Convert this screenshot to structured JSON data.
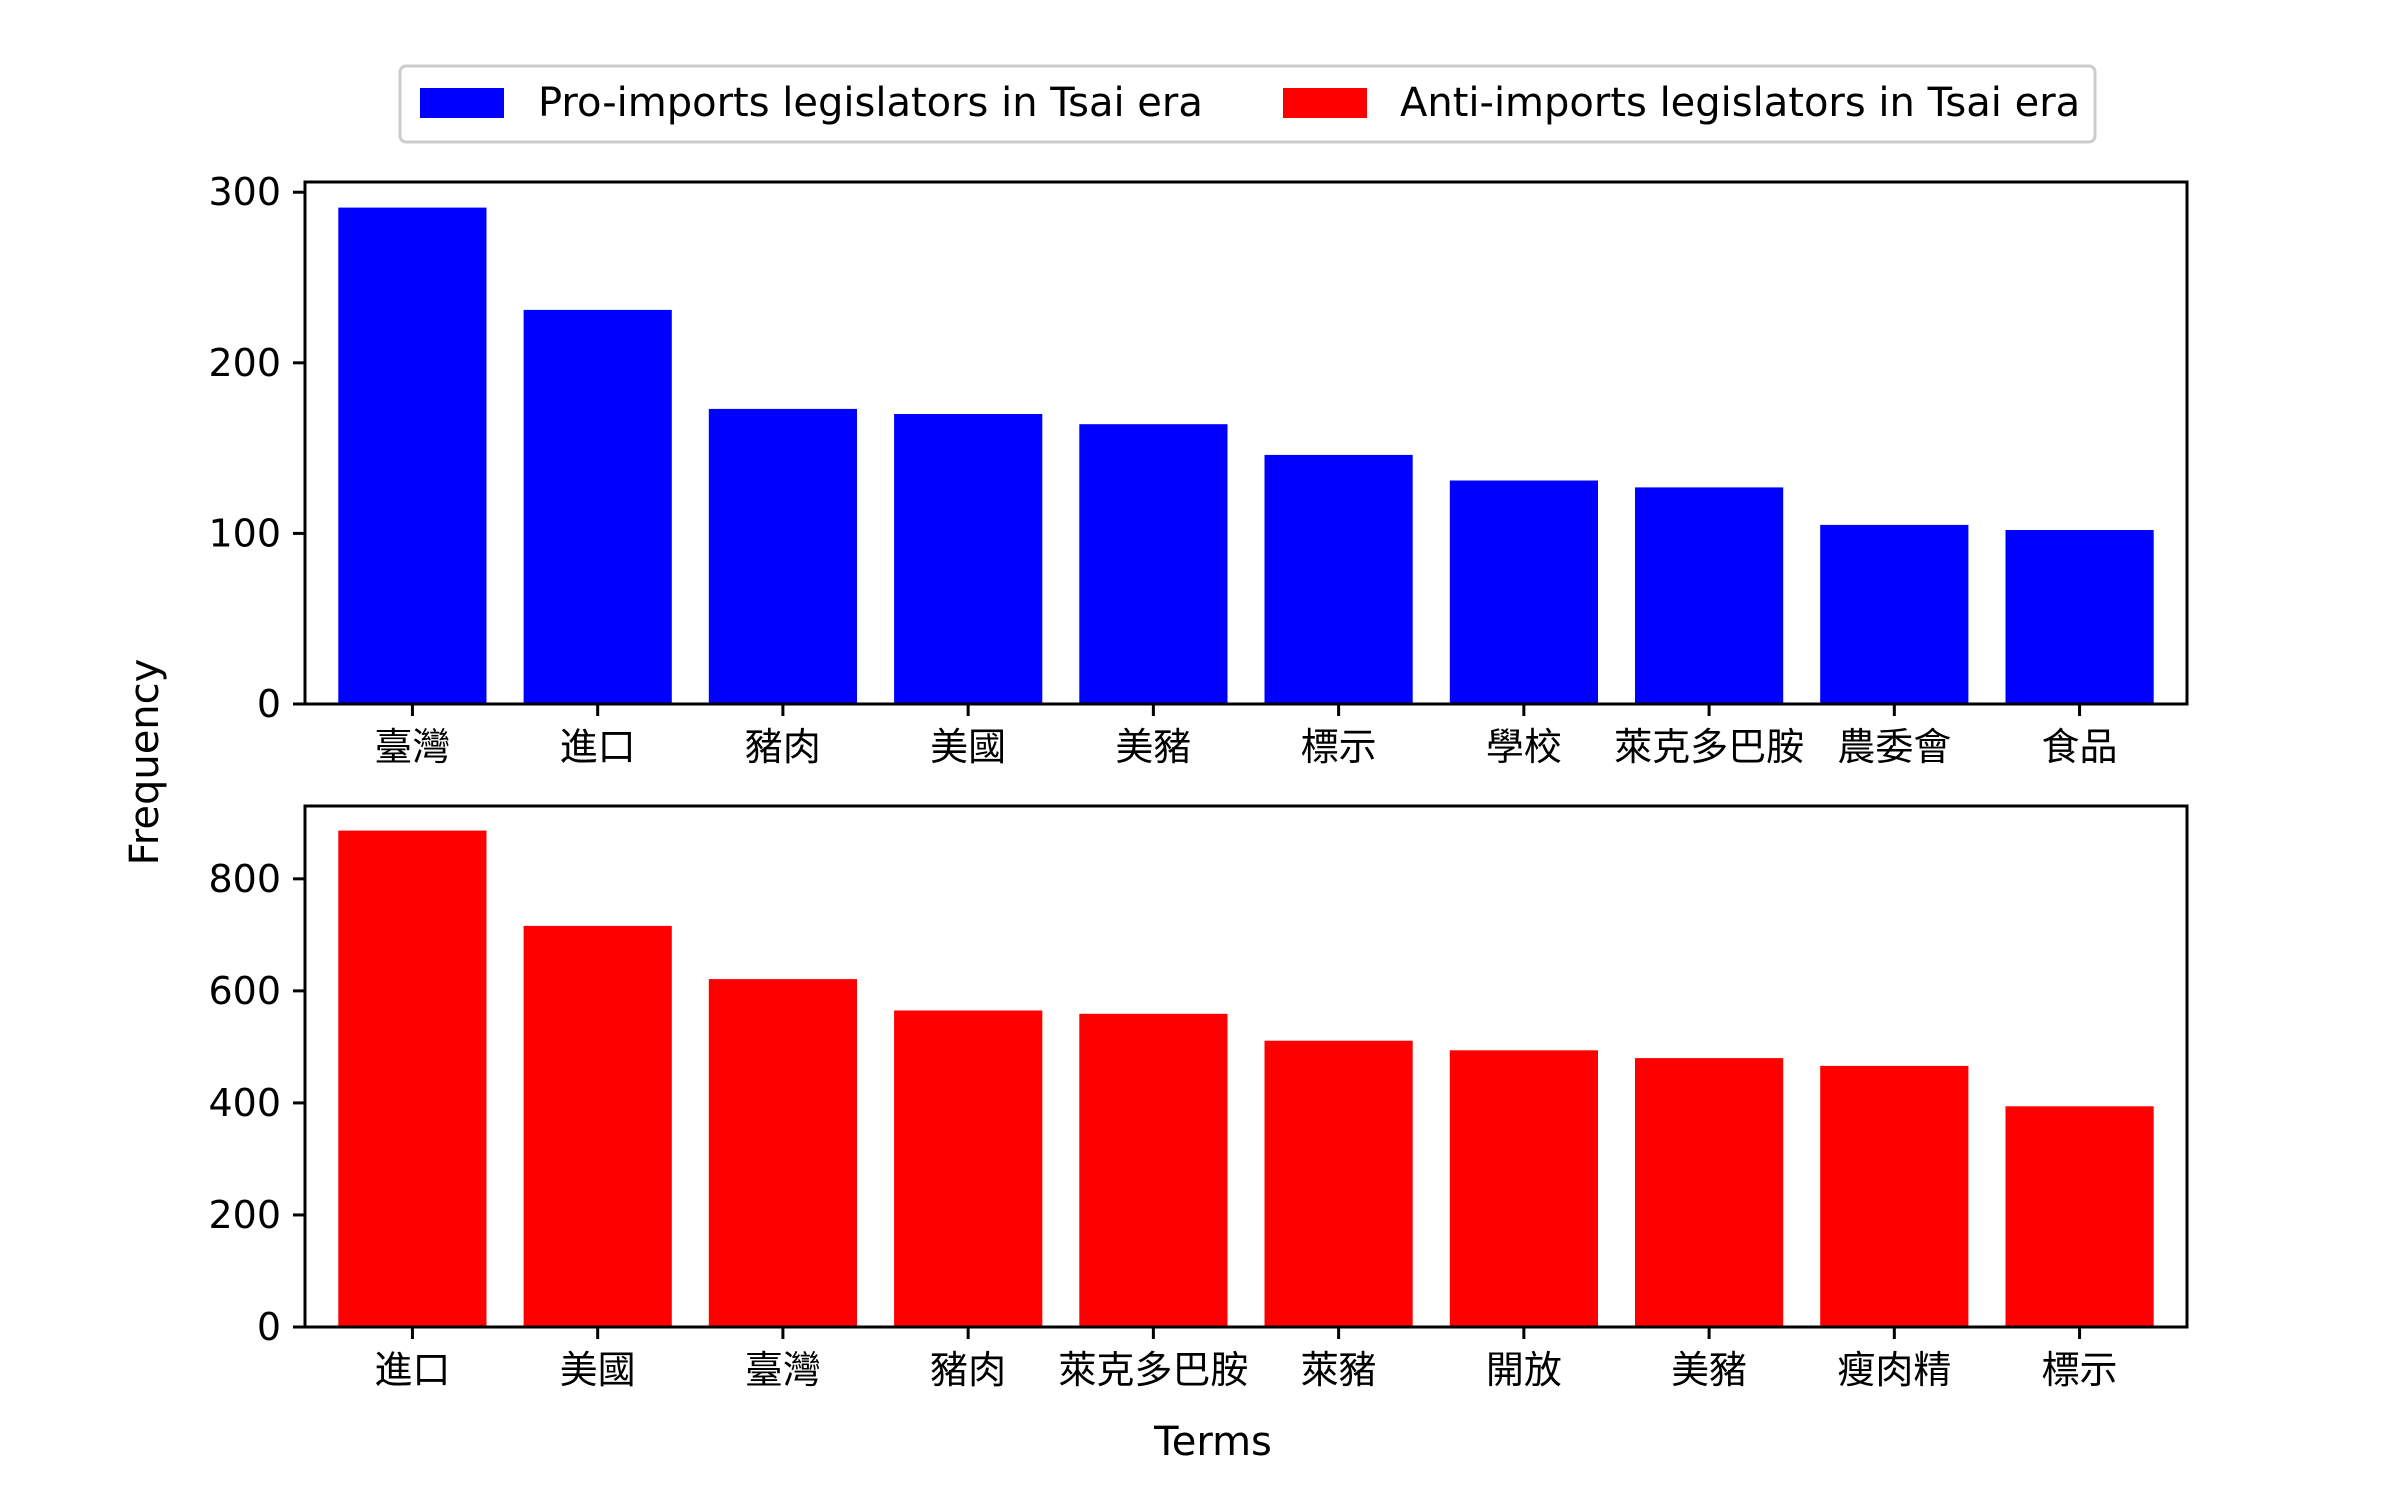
{
  "legend": {
    "items": [
      {
        "label": "Pro-imports legislators in Tsai era",
        "color": "#0000ff"
      },
      {
        "label": "Anti-imports legislators in Tsai era",
        "color": "#ff0000"
      }
    ]
  },
  "axes": {
    "ylabel": "Frequency",
    "xlabel": "Terms"
  },
  "chart_data": [
    {
      "type": "bar",
      "series_name": "Pro-imports legislators in Tsai era",
      "color": "#0000ff",
      "categories": [
        "臺灣",
        "進口",
        "豬肉",
        "美國",
        "美豬",
        "標示",
        "學校",
        "萊克多巴胺",
        "農委會",
        "食品"
      ],
      "values": [
        291,
        231,
        173,
        170,
        164,
        146,
        131,
        127,
        105,
        102
      ],
      "ylim": [
        0,
        306
      ],
      "yticks": [
        0,
        100,
        200,
        300
      ],
      "ylabel": "Frequency",
      "xlabel": "",
      "grid": false
    },
    {
      "type": "bar",
      "series_name": "Anti-imports legislators in Tsai era",
      "color": "#ff0000",
      "categories": [
        "進口",
        "美國",
        "臺灣",
        "豬肉",
        "萊克多巴胺",
        "萊豬",
        "開放",
        "美豬",
        "瘦肉精",
        "標示"
      ],
      "values": [
        886,
        716,
        621,
        565,
        559,
        511,
        494,
        480,
        466,
        394
      ],
      "ylim": [
        0,
        930
      ],
      "yticks": [
        0,
        200,
        400,
        600,
        800
      ],
      "ylabel": "",
      "xlabel": "Terms",
      "grid": false
    }
  ]
}
